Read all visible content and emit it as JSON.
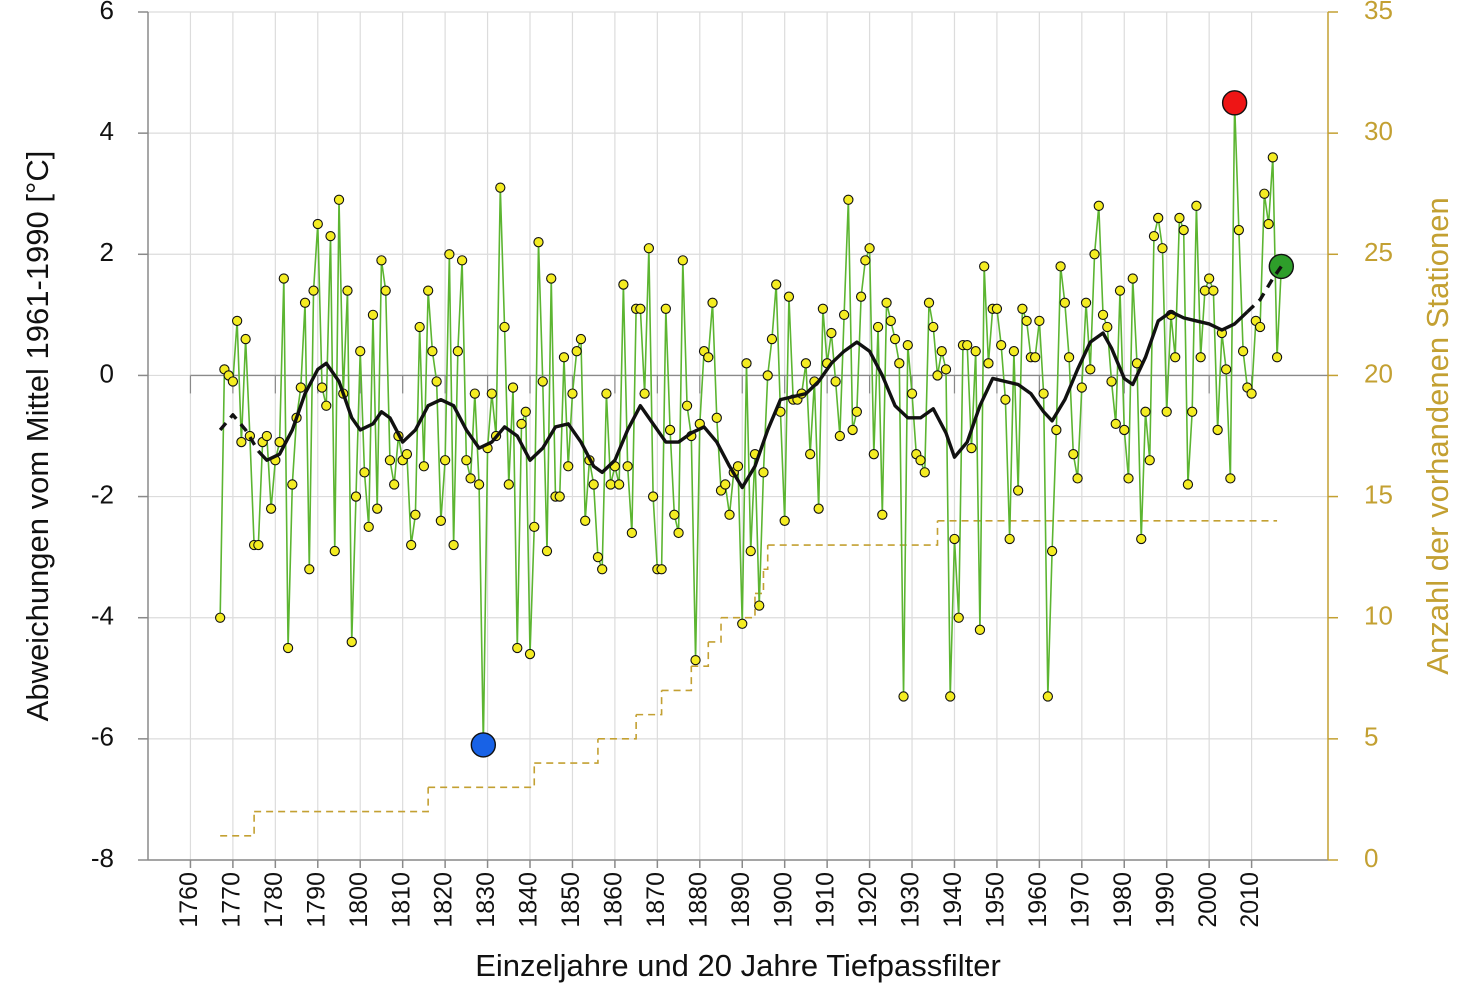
{
  "chart_data": {
    "type": "line",
    "xlabel": "Einzeljahre und 20 Jahre Tiefpassfilter",
    "ylabel": "Abweichungen vom Mittel 1961-1990 [°C]",
    "y2label": "Anzahl der vorhandenen Stationen",
    "xlim": [
      1750,
      2028
    ],
    "ylim": [
      -8,
      6
    ],
    "y2lim": [
      0,
      35
    ],
    "xticks": [
      1760,
      1770,
      1780,
      1790,
      1800,
      1810,
      1820,
      1830,
      1840,
      1850,
      1860,
      1870,
      1880,
      1890,
      1900,
      1910,
      1920,
      1930,
      1940,
      1950,
      1960,
      1970,
      1980,
      1990,
      2000,
      2010
    ],
    "yticks": [
      -8,
      -6,
      -4,
      -2,
      0,
      2,
      4,
      6
    ],
    "y2ticks": [
      0,
      5,
      10,
      15,
      20,
      25,
      30,
      35
    ],
    "grid": true,
    "y2_color": "#c3a032",
    "series": [
      {
        "color": "#5cb531",
        "marker_color": "#f4ec22",
        "marker": true,
        "dashed": false,
        "x": [
          1767,
          1768,
          1769,
          1770,
          1771,
          1772,
          1773,
          1774,
          1775,
          1776,
          1777,
          1778,
          1779,
          1780,
          1781,
          1782,
          1783,
          1784,
          1785,
          1786,
          1787,
          1788,
          1789,
          1790,
          1791,
          1792,
          1793,
          1794,
          1795,
          1796,
          1797,
          1798,
          1799,
          1800,
          1801,
          1802,
          1803,
          1804,
          1805,
          1806,
          1807,
          1808,
          1809,
          1810,
          1811,
          1812,
          1813,
          1814,
          1815,
          1816,
          1817,
          1818,
          1819,
          1820,
          1821,
          1822,
          1823,
          1824,
          1825,
          1826,
          1827,
          1828,
          1829,
          1830,
          1831,
          1832,
          1833,
          1834,
          1835,
          1836,
          1837,
          1838,
          1839,
          1840,
          1841,
          1842,
          1843,
          1844,
          1845,
          1846,
          1847,
          1848,
          1849,
          1850,
          1851,
          1852,
          1853,
          1854,
          1855,
          1856,
          1857,
          1858,
          1859,
          1860,
          1861,
          1862,
          1863,
          1864,
          1865,
          1866,
          1867,
          1868,
          1869,
          1870,
          1871,
          1872,
          1873,
          1874,
          1875,
          1876,
          1877,
          1878,
          1879,
          1880,
          1881,
          1882,
          1883,
          1884,
          1885,
          1886,
          1887,
          1888,
          1889,
          1890,
          1891,
          1892,
          1893,
          1894,
          1895,
          1896,
          1897,
          1898,
          1899,
          1900,
          1901,
          1902,
          1903,
          1904,
          1905,
          1906,
          1907,
          1908,
          1909,
          1910,
          1911,
          1912,
          1913,
          1914,
          1915,
          1916,
          1917,
          1918,
          1919,
          1920,
          1921,
          1922,
          1923,
          1924,
          1925,
          1926,
          1927,
          1928,
          1929,
          1930,
          1931,
          1932,
          1933,
          1934,
          1935,
          1936,
          1937,
          1938,
          1939,
          1940,
          1941,
          1942,
          1943,
          1944,
          1945,
          1946,
          1947,
          1948,
          1949,
          1950,
          1951,
          1952,
          1953,
          1954,
          1955,
          1956,
          1957,
          1958,
          1959,
          1960,
          1961,
          1962,
          1963,
          1964,
          1965,
          1966,
          1967,
          1968,
          1969,
          1970,
          1971,
          1972,
          1973,
          1974,
          1975,
          1976,
          1977,
          1978,
          1979,
          1980,
          1981,
          1982,
          1983,
          1984,
          1985,
          1986,
          1987,
          1988,
          1989,
          1990,
          1991,
          1992,
          1993,
          1994,
          1995,
          1996,
          1997,
          1998,
          1999,
          2000,
          2001,
          2002,
          2003,
          2004,
          2005,
          2006,
          2007,
          2008,
          2009,
          2010,
          2011,
          2012,
          2013,
          2014,
          2015,
          2016,
          2017
        ],
        "values": [
          -4.0,
          0.1,
          0.0,
          -0.1,
          0.9,
          -1.1,
          0.6,
          -1.0,
          -2.8,
          -2.8,
          -1.1,
          -1.0,
          -2.2,
          -1.4,
          -1.1,
          1.6,
          -4.5,
          -1.8,
          -0.7,
          -0.2,
          1.2,
          -3.2,
          1.4,
          2.5,
          -0.2,
          -0.5,
          2.3,
          -2.9,
          2.9,
          -0.3,
          1.4,
          -4.4,
          -2.0,
          0.4,
          -1.6,
          -2.5,
          1.0,
          -2.2,
          1.9,
          1.4,
          -1.4,
          -1.8,
          -1.0,
          -1.4,
          -1.3,
          -2.8,
          -2.3,
          0.8,
          -1.5,
          1.4,
          0.4,
          -0.1,
          -2.4,
          -1.4,
          2.0,
          -2.8,
          0.4,
          1.9,
          -1.4,
          -1.7,
          -0.3,
          -1.8,
          -6.1,
          -1.2,
          -0.3,
          -1.0,
          3.1,
          0.8,
          -1.8,
          -0.2,
          -4.5,
          -0.8,
          -0.6,
          -4.6,
          -2.5,
          2.2,
          -0.1,
          -2.9,
          1.6,
          -2.0,
          -2.0,
          0.3,
          -1.5,
          -0.3,
          0.4,
          0.6,
          -2.4,
          -1.4,
          -1.8,
          -3.0,
          -3.2,
          -0.3,
          -1.8,
          -1.5,
          -1.8,
          1.5,
          -1.5,
          -2.6,
          1.1,
          1.1,
          -0.3,
          2.1,
          -2.0,
          -3.2,
          -3.2,
          1.1,
          -0.9,
          -2.3,
          -2.6,
          1.9,
          -0.5,
          -1.0,
          -4.7,
          -0.8,
          0.4,
          0.3,
          1.2,
          -0.7,
          -1.9,
          -1.8,
          -2.3,
          -1.6,
          -1.5,
          -4.1,
          0.2,
          -2.9,
          -1.3,
          -3.8,
          -1.6,
          0.0,
          0.6,
          1.5,
          -0.6,
          -2.4,
          1.3,
          -0.4,
          -0.4,
          -0.3,
          0.2,
          -1.3,
          -0.1,
          -2.2,
          1.1,
          0.2,
          0.7,
          -0.1,
          -1.0,
          1.0,
          2.9,
          -0.9,
          -0.6,
          1.3,
          1.9,
          2.1,
          -1.3,
          0.8,
          -2.3,
          1.2,
          0.9,
          0.6,
          0.2,
          -5.3,
          0.5,
          -0.3,
          -1.3,
          -1.4,
          -1.6,
          1.2,
          0.8,
          0.0,
          0.4,
          0.1,
          -5.3,
          -2.7,
          -4.0,
          0.5,
          0.5,
          -1.2,
          0.4,
          -4.2,
          1.8,
          0.2,
          1.1,
          1.1,
          0.5,
          -0.4,
          -2.7,
          0.4,
          -1.9,
          1.1,
          0.9,
          0.3,
          0.3,
          0.9,
          -0.3,
          -5.3,
          -2.9,
          -0.9,
          1.8,
          1.2,
          0.3,
          -1.3,
          -1.7,
          -0.2,
          1.2,
          0.1,
          2.0,
          2.8,
          1.0,
          0.8,
          -0.1,
          -0.8,
          1.4,
          -0.9,
          -1.7,
          1.6,
          0.2,
          -2.7,
          -0.6,
          -1.4,
          2.3,
          2.6,
          2.1,
          -0.6,
          1.0,
          0.3,
          2.6,
          2.4,
          -1.8,
          -0.6,
          2.8,
          0.3,
          1.4,
          1.6,
          1.4,
          -0.9,
          0.7,
          0.1,
          -1.7,
          4.5,
          2.4,
          0.4,
          -0.2,
          -0.3,
          0.9,
          0.8,
          3.0,
          2.5,
          3.6,
          0.3,
          1.8
        ],
        "highlights": [
          {
            "x": 1829,
            "color": "#1862e6"
          },
          {
            "x": 2006,
            "color": "#ee1515"
          },
          {
            "x": 2017,
            "color": "#2e9e2a"
          }
        ]
      },
      {
        "color": "#111111",
        "marker": false,
        "dashed": true,
        "x": [
          1767,
          1770,
          1773,
          1776
        ],
        "values": [
          -0.9,
          -0.65,
          -0.9,
          -1.25
        ]
      },
      {
        "color": "#111111",
        "marker": false,
        "dashed": false,
        "x": [
          1776,
          1778,
          1781,
          1784,
          1787,
          1790,
          1792,
          1795,
          1798,
          1800,
          1803,
          1805,
          1807,
          1810,
          1813,
          1816,
          1819,
          1822,
          1825,
          1828,
          1831,
          1834,
          1837,
          1840,
          1843,
          1846,
          1849,
          1852,
          1855,
          1857,
          1860,
          1863,
          1866,
          1869,
          1872,
          1875,
          1878,
          1881,
          1884,
          1887,
          1890,
          1893,
          1896,
          1899,
          1902,
          1905,
          1908,
          1911,
          1914,
          1917,
          1920,
          1923,
          1926,
          1929,
          1932,
          1935,
          1938,
          1940,
          1943,
          1946,
          1949,
          1952,
          1955,
          1958,
          1961,
          1963,
          1966,
          1969,
          1972,
          1975,
          1977,
          1980,
          1982,
          1985,
          1988,
          1991,
          1994,
          1997,
          2000,
          2003,
          2006,
          2009
        ],
        "values": [
          -1.25,
          -1.4,
          -1.3,
          -0.9,
          -0.3,
          0.1,
          0.2,
          -0.1,
          -0.7,
          -0.9,
          -0.8,
          -0.6,
          -0.7,
          -1.1,
          -0.9,
          -0.5,
          -0.4,
          -0.5,
          -0.9,
          -1.2,
          -1.1,
          -0.85,
          -1.0,
          -1.4,
          -1.2,
          -0.85,
          -0.8,
          -1.1,
          -1.5,
          -1.6,
          -1.4,
          -0.9,
          -0.5,
          -0.8,
          -1.1,
          -1.1,
          -0.95,
          -0.85,
          -1.1,
          -1.5,
          -1.85,
          -1.5,
          -0.9,
          -0.4,
          -0.35,
          -0.3,
          -0.1,
          0.2,
          0.4,
          0.55,
          0.4,
          0.0,
          -0.5,
          -0.7,
          -0.7,
          -0.55,
          -0.95,
          -1.35,
          -1.1,
          -0.5,
          -0.05,
          -0.1,
          -0.15,
          -0.3,
          -0.6,
          -0.75,
          -0.4,
          0.1,
          0.55,
          0.7,
          0.45,
          -0.05,
          -0.15,
          0.3,
          0.9,
          1.05,
          0.95,
          0.9,
          0.85,
          0.75,
          0.85,
          1.05
        ]
      },
      {
        "color": "#111111",
        "marker": false,
        "dashed": true,
        "x": [
          2009,
          2012,
          2015,
          2017
        ],
        "values": [
          1.05,
          1.25,
          1.6,
          1.8
        ]
      },
      {
        "color": "#c3a032",
        "marker": false,
        "dashed": true,
        "step": true,
        "axis": "y2",
        "x": [
          1767,
          1775,
          1816,
          1841,
          1856,
          1865,
          1871,
          1878,
          1882,
          1885,
          1893,
          1895,
          1896,
          1936,
          2016
        ],
        "values": [
          1,
          2,
          3,
          4,
          5,
          6,
          7,
          8,
          9,
          10,
          11,
          12,
          13,
          14,
          14
        ]
      }
    ]
  }
}
